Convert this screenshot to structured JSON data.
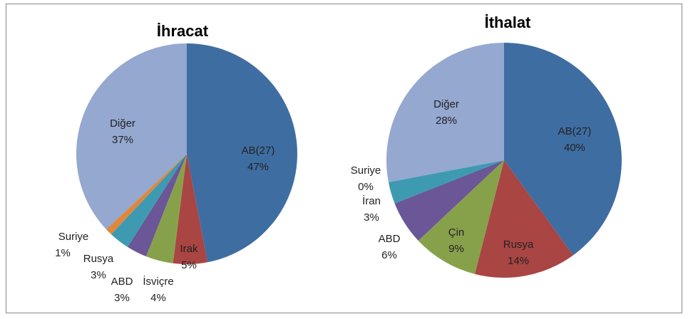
{
  "chart_data": [
    {
      "type": "pie",
      "title": "İhracat",
      "categories": [
        "AB(27)",
        "Irak",
        "İsviçre",
        "ABD",
        "Rusya",
        "Suriye",
        "Diğer"
      ],
      "values": [
        47,
        5,
        4,
        3,
        3,
        1,
        37
      ],
      "value_labels": [
        "47%",
        "5%",
        "4%",
        "3%",
        "3%",
        "1%",
        "37%"
      ],
      "colors": [
        "#3e6da2",
        "#a94543",
        "#87a14b",
        "#6b5697",
        "#3d9ab1",
        "#e0873a",
        "#94a8d0"
      ]
    },
    {
      "type": "pie",
      "title": "İthalat",
      "categories": [
        "AB(27)",
        "Rusya",
        "Çin",
        "ABD",
        "İran",
        "Suriye",
        "Diğer"
      ],
      "values": [
        40,
        14,
        9,
        6,
        3,
        0,
        28
      ],
      "value_labels": [
        "40%",
        "14%",
        "9%",
        "6%",
        "3%",
        "0%",
        "28%"
      ],
      "colors": [
        "#3e6da2",
        "#a94543",
        "#87a14b",
        "#6b5697",
        "#3d9ab1",
        "#e0873a",
        "#94a8d0"
      ]
    }
  ]
}
